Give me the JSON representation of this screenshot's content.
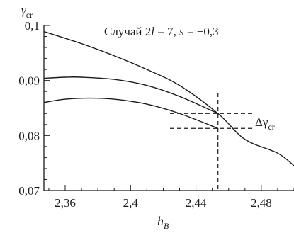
{
  "chart_data": {
    "type": "line",
    "title": "Случай 2l = 7, s = −0,3",
    "title_parts": {
      "prefix": "Случай 2",
      "l": "l",
      "mid": " = 7, ",
      "s": "s",
      "suffix": " = −0,3"
    },
    "xlabel": {
      "main": "h",
      "sub": "B"
    },
    "ylabel": {
      "main": "γ",
      "sub": "cr"
    },
    "xlim": [
      2.347,
      2.5
    ],
    "ylim": [
      0.07,
      0.1
    ],
    "x_ticks": [
      {
        "value": 2.36,
        "label": "2,36"
      },
      {
        "value": 2.4,
        "label": "2,4"
      },
      {
        "value": 2.44,
        "label": "2,44"
      },
      {
        "value": 2.48,
        "label": "2,48"
      }
    ],
    "y_ticks": [
      {
        "value": 0.07,
        "label": "0,07"
      },
      {
        "value": 0.08,
        "label": "0,08"
      },
      {
        "value": 0.09,
        "label": "0,09"
      },
      {
        "value": 0.1,
        "label": "0,1"
      }
    ],
    "series": [
      {
        "x": [
          2.347,
          2.37,
          2.39,
          2.41,
          2.43,
          2.4535,
          2.47,
          2.49,
          2.5
        ],
        "y": [
          0.0989,
          0.0967,
          0.0945,
          0.092,
          0.0891,
          0.084,
          0.0793,
          0.0768,
          0.0745
        ]
      },
      {
        "x": [
          2.347,
          2.36,
          2.37,
          2.39,
          2.41,
          2.43,
          2.4535
        ],
        "y": [
          0.0904,
          0.0906,
          0.0906,
          0.0902,
          0.0891,
          0.0871,
          0.084
        ]
      },
      {
        "x": [
          2.347,
          2.36,
          2.375,
          2.39,
          2.41,
          2.43,
          2.4535
        ],
        "y": [
          0.086,
          0.0866,
          0.0868,
          0.0866,
          0.0857,
          0.084,
          0.0813
        ]
      }
    ],
    "annotations": {
      "vertical_line_x": 2.4535,
      "horizontal_lines_y": [
        0.084,
        0.0813
      ],
      "delta_label": {
        "main": "Δγ",
        "sub": "cr"
      }
    },
    "grid": false,
    "colors": {
      "line": "#1a1a1a",
      "axis": "#1a1a1a"
    }
  }
}
